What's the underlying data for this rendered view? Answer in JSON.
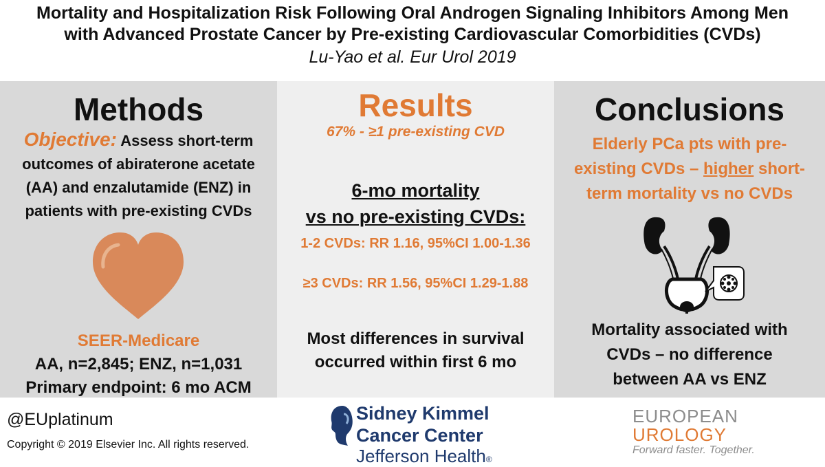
{
  "header": {
    "title_line1": "Mortality and Hospitalization Risk Following Oral Androgen Signaling Inhibitors Among Men",
    "title_line2": "with Advanced Prostate Cancer by Pre-existing Cardiovascular Comorbidities (CVDs)",
    "citation": "Lu-Yao et al. Eur Urol 2019"
  },
  "methods": {
    "heading": "Methods",
    "objective_label": "Objective:",
    "objective_text_1": " Assess short-term",
    "objective_text_2": "outcomes of abiraterone acetate",
    "objective_text_3": "(AA) and enzalutamide (ENZ) in",
    "objective_text_4": "patients with pre-existing CVDs",
    "icon": "heart-icon",
    "source": "SEER-Medicare",
    "sample": "AA, n=2,845; ENZ, n=1,031",
    "endpoint": "Primary endpoint: 6 mo ACM"
  },
  "results": {
    "heading": "Results",
    "prevalence": "67% - ≥1 pre-existing CVD",
    "mortality_title_1": "6-mo mortality",
    "mortality_title_2": "vs no pre-existing CVDs:",
    "rr_1_2": "1-2 CVDs: RR 1.16, 95%CI 1.00-1.36",
    "rr_3": "≥3 CVDs: RR 1.56, 95%CI 1.29-1.88",
    "survival_1": "Most differences in survival",
    "survival_2": "occurred within first 6 mo"
  },
  "conclusions": {
    "heading": "Conclusions",
    "c1_line1": "Elderly PCa pts with pre-",
    "c1_line2_a": "existing CVDs – ",
    "c1_line2_b": "higher",
    "c1_line2_c": " short-",
    "c1_line3": "term mortality vs no CVDs",
    "icon": "prostate-kidney-icon",
    "c2_line1": "Mortality associated with",
    "c2_line2": "CVDs – no difference",
    "c2_line3": "between AA vs ENZ"
  },
  "footer": {
    "handle": "@EUplatinum",
    "copyright": "Copyright © 2019 Elsevier Inc. All rights reserved.",
    "sk_line1": "Sidney Kimmel",
    "sk_line2": "Cancer Center",
    "sk_line3": "Jefferson Health",
    "sk_mark": "®",
    "eu_line1": "EUROPEAN",
    "eu_line2": "UROLOGY",
    "eu_tagline": "Forward faster. Together."
  },
  "colors": {
    "accent": "#e07a34",
    "panel_dark": "#d9d9d9",
    "panel_light": "#efefef",
    "heart": "#d9895a",
    "brand_navy": "#1f3a6d"
  }
}
